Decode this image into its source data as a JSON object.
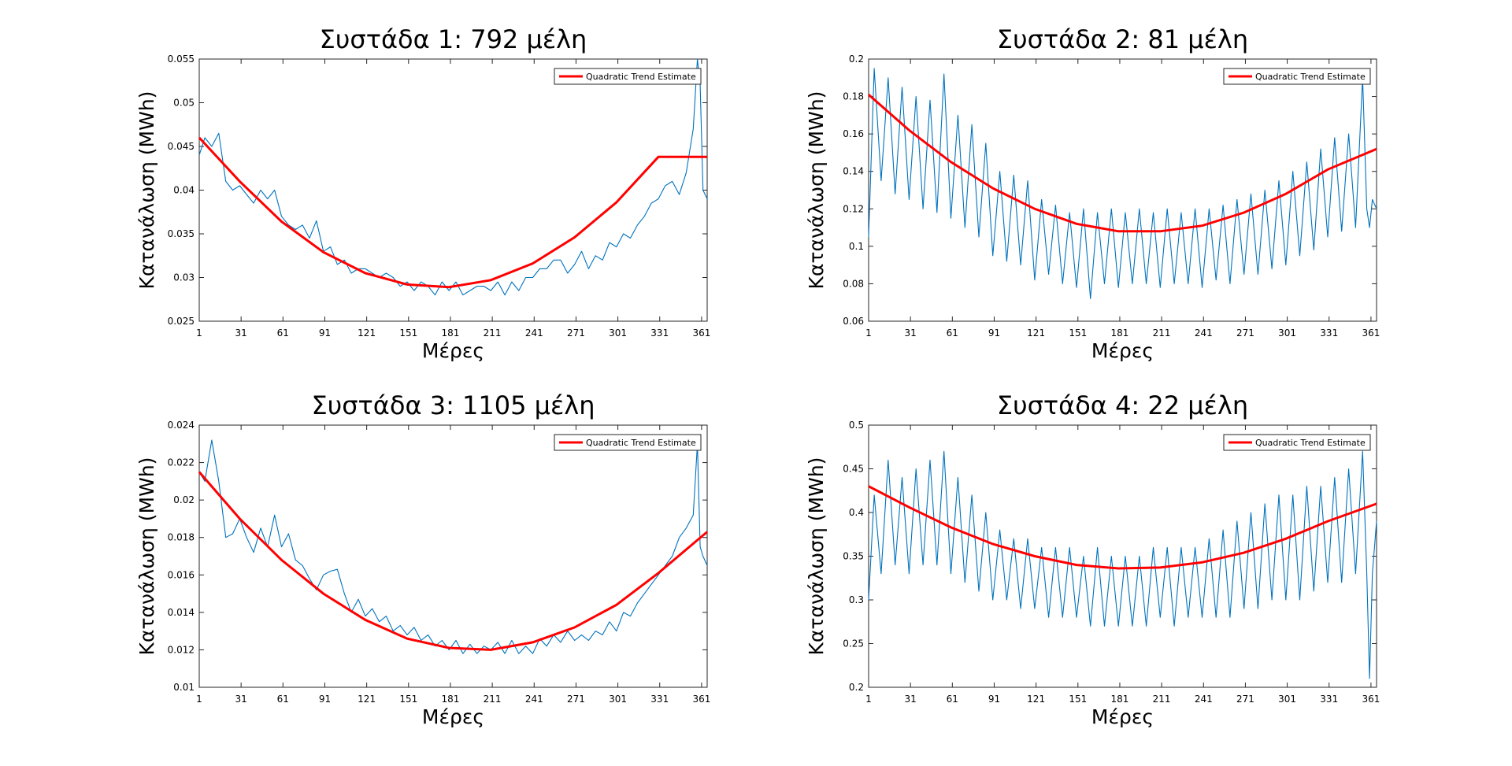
{
  "figure": {
    "background": "#ffffff"
  },
  "colors": {
    "data": "#0072BD",
    "trend": "#FF0000"
  },
  "chart_data": [
    {
      "type": "line",
      "title": "Συστάδα 1: 792 μέλη",
      "xlabel": "Μέρες",
      "ylabel": "Κατανάλωση (MWh)",
      "xlim": [
        1,
        365
      ],
      "ylim": [
        0.025,
        0.055
      ],
      "xticks": [
        1,
        31,
        61,
        91,
        121,
        151,
        181,
        211,
        241,
        271,
        301,
        331,
        361
      ],
      "xtick_labels": [
        "1",
        "31",
        "61",
        "91",
        "121",
        "151",
        "181",
        "211",
        "241",
        "271",
        "301",
        "331",
        "361"
      ],
      "yticks": [
        0.025,
        0.03,
        0.035,
        0.04,
        0.045,
        0.05,
        0.055
      ],
      "ytick_labels": [
        "0.025",
        "0.03",
        "0.035",
        "0.04",
        "0.045",
        "0.05",
        "0.055"
      ],
      "legend": {
        "position": "top-right",
        "entries": [
          "Quadratic Trend Estimate"
        ]
      },
      "series": [
        {
          "kind": "daily",
          "x": [
            1,
            5,
            10,
            15,
            20,
            25,
            30,
            35,
            40,
            45,
            50,
            55,
            60,
            65,
            70,
            75,
            80,
            85,
            90,
            95,
            100,
            105,
            110,
            115,
            120,
            125,
            130,
            135,
            140,
            145,
            150,
            155,
            160,
            165,
            170,
            175,
            180,
            185,
            190,
            195,
            200,
            205,
            210,
            215,
            220,
            225,
            230,
            235,
            240,
            245,
            250,
            255,
            260,
            265,
            270,
            275,
            280,
            285,
            290,
            295,
            300,
            305,
            310,
            315,
            320,
            325,
            330,
            335,
            340,
            345,
            350,
            355,
            358,
            360,
            362,
            365
          ],
          "y": [
            0.044,
            0.046,
            0.045,
            0.0465,
            0.041,
            0.04,
            0.0405,
            0.0395,
            0.0385,
            0.04,
            0.039,
            0.04,
            0.037,
            0.036,
            0.0355,
            0.036,
            0.0345,
            0.0365,
            0.033,
            0.0335,
            0.0315,
            0.032,
            0.0305,
            0.031,
            0.031,
            0.0305,
            0.03,
            0.0305,
            0.03,
            0.029,
            0.0295,
            0.0285,
            0.0295,
            0.029,
            0.028,
            0.0295,
            0.0285,
            0.0295,
            0.028,
            0.0285,
            0.029,
            0.029,
            0.0285,
            0.0295,
            0.028,
            0.0295,
            0.0285,
            0.03,
            0.03,
            0.031,
            0.031,
            0.032,
            0.032,
            0.0305,
            0.0315,
            0.033,
            0.031,
            0.0325,
            0.032,
            0.034,
            0.0335,
            0.035,
            0.0345,
            0.036,
            0.037,
            0.0385,
            0.039,
            0.0405,
            0.041,
            0.0395,
            0.042,
            0.047,
            0.055,
            0.052,
            0.04,
            0.039
          ]
        },
        {
          "kind": "trend",
          "name": "Quadratic Trend Estimate",
          "x": [
            1,
            30,
            60,
            90,
            120,
            150,
            180,
            210,
            240,
            270,
            300,
            330,
            365
          ],
          "y": [
            0.046,
            0.041,
            0.0364,
            0.0329,
            0.0305,
            0.0292,
            0.0289,
            0.0297,
            0.0316,
            0.0346,
            0.0386,
            0.0438,
            0.0438
          ]
        }
      ]
    },
    {
      "type": "line",
      "title": "Συστάδα 2: 81 μέλη",
      "xlabel": "Μέρες",
      "ylabel": "Κατανάλωση (MWh)",
      "xlim": [
        1,
        365
      ],
      "ylim": [
        0.06,
        0.2
      ],
      "xticks": [
        1,
        31,
        61,
        91,
        121,
        151,
        181,
        211,
        241,
        271,
        301,
        331,
        361
      ],
      "xtick_labels": [
        "1",
        "31",
        "61",
        "91",
        "121",
        "151",
        "181",
        "211",
        "241",
        "271",
        "301",
        "331",
        "361"
      ],
      "yticks": [
        0.06,
        0.08,
        0.1,
        0.12,
        0.14,
        0.16,
        0.18,
        0.2
      ],
      "ytick_labels": [
        "0.06",
        "0.08",
        "0.1",
        "0.12",
        "0.14",
        "0.16",
        "0.18",
        "0.2"
      ],
      "legend": {
        "position": "top-right",
        "entries": [
          "Quadratic Trend Estimate"
        ]
      },
      "series": [
        {
          "kind": "daily",
          "x": [
            1,
            5,
            10,
            15,
            20,
            25,
            30,
            35,
            40,
            45,
            50,
            55,
            60,
            65,
            70,
            75,
            80,
            85,
            90,
            95,
            100,
            105,
            110,
            115,
            120,
            125,
            130,
            135,
            140,
            145,
            150,
            155,
            160,
            165,
            170,
            175,
            180,
            185,
            190,
            195,
            200,
            205,
            210,
            215,
            220,
            225,
            230,
            235,
            240,
            245,
            250,
            255,
            260,
            265,
            270,
            275,
            280,
            285,
            290,
            295,
            300,
            305,
            310,
            315,
            320,
            325,
            330,
            335,
            340,
            345,
            350,
            355,
            358,
            360,
            362,
            365
          ],
          "y": [
            0.105,
            0.195,
            0.135,
            0.19,
            0.128,
            0.185,
            0.125,
            0.18,
            0.12,
            0.178,
            0.118,
            0.192,
            0.115,
            0.17,
            0.11,
            0.165,
            0.105,
            0.155,
            0.095,
            0.14,
            0.092,
            0.138,
            0.09,
            0.135,
            0.082,
            0.125,
            0.085,
            0.122,
            0.08,
            0.118,
            0.078,
            0.12,
            0.072,
            0.118,
            0.08,
            0.12,
            0.078,
            0.118,
            0.08,
            0.12,
            0.08,
            0.118,
            0.078,
            0.12,
            0.08,
            0.118,
            0.08,
            0.12,
            0.078,
            0.12,
            0.082,
            0.122,
            0.08,
            0.125,
            0.085,
            0.128,
            0.085,
            0.13,
            0.088,
            0.135,
            0.09,
            0.14,
            0.095,
            0.145,
            0.098,
            0.152,
            0.105,
            0.158,
            0.108,
            0.16,
            0.11,
            0.19,
            0.12,
            0.11,
            0.125,
            0.12
          ]
        },
        {
          "kind": "trend",
          "name": "Quadratic Trend Estimate",
          "x": [
            1,
            30,
            60,
            90,
            120,
            150,
            180,
            210,
            240,
            270,
            300,
            330,
            365
          ],
          "y": [
            0.181,
            0.162,
            0.145,
            0.131,
            0.12,
            0.112,
            0.108,
            0.108,
            0.111,
            0.118,
            0.128,
            0.141,
            0.152
          ]
        }
      ]
    },
    {
      "type": "line",
      "title": "Συστάδα 3: 1105 μέλη",
      "xlabel": "Μέρες",
      "ylabel": "Κατανάλωση (MWh)",
      "xlim": [
        1,
        365
      ],
      "ylim": [
        0.01,
        0.024
      ],
      "xticks": [
        1,
        31,
        61,
        91,
        121,
        151,
        181,
        211,
        241,
        271,
        301,
        331,
        361
      ],
      "xtick_labels": [
        "1",
        "31",
        "61",
        "91",
        "121",
        "151",
        "181",
        "211",
        "241",
        "271",
        "301",
        "331",
        "361"
      ],
      "yticks": [
        0.01,
        0.012,
        0.014,
        0.016,
        0.018,
        0.02,
        0.022,
        0.024
      ],
      "ytick_labels": [
        "0.01",
        "0.012",
        "0.014",
        "0.016",
        "0.018",
        "0.02",
        "0.022",
        "0.024"
      ],
      "legend": {
        "position": "top-right",
        "entries": [
          "Quadratic Trend Estimate"
        ]
      },
      "series": [
        {
          "kind": "daily",
          "x": [
            1,
            5,
            10,
            15,
            20,
            25,
            30,
            35,
            40,
            45,
            50,
            55,
            60,
            65,
            70,
            75,
            80,
            85,
            90,
            95,
            100,
            105,
            110,
            115,
            120,
            125,
            130,
            135,
            140,
            145,
            150,
            155,
            160,
            165,
            170,
            175,
            180,
            185,
            190,
            195,
            200,
            205,
            210,
            215,
            220,
            225,
            230,
            235,
            240,
            245,
            250,
            255,
            260,
            265,
            270,
            275,
            280,
            285,
            290,
            295,
            300,
            305,
            310,
            315,
            320,
            325,
            330,
            335,
            340,
            345,
            350,
            355,
            358,
            360,
            362,
            365
          ],
          "y": [
            0.0215,
            0.021,
            0.0232,
            0.021,
            0.018,
            0.0182,
            0.019,
            0.018,
            0.0172,
            0.0185,
            0.0175,
            0.0192,
            0.0175,
            0.0182,
            0.0168,
            0.0165,
            0.0158,
            0.0152,
            0.016,
            0.0162,
            0.0163,
            0.015,
            0.014,
            0.0147,
            0.0138,
            0.0142,
            0.0135,
            0.0138,
            0.013,
            0.0133,
            0.0128,
            0.0132,
            0.0125,
            0.0128,
            0.0122,
            0.0125,
            0.012,
            0.0125,
            0.0118,
            0.0123,
            0.0118,
            0.0122,
            0.012,
            0.0124,
            0.0118,
            0.0125,
            0.0118,
            0.0122,
            0.0118,
            0.0126,
            0.0122,
            0.0128,
            0.0124,
            0.013,
            0.0125,
            0.0128,
            0.0125,
            0.013,
            0.0128,
            0.0135,
            0.013,
            0.014,
            0.0138,
            0.0145,
            0.015,
            0.0155,
            0.016,
            0.0165,
            0.017,
            0.018,
            0.0185,
            0.0192,
            0.023,
            0.0175,
            0.017,
            0.0165
          ]
        },
        {
          "kind": "trend",
          "name": "Quadratic Trend Estimate",
          "x": [
            1,
            30,
            60,
            90,
            120,
            150,
            180,
            210,
            240,
            270,
            300,
            330,
            365
          ],
          "y": [
            0.0215,
            0.019,
            0.0168,
            0.015,
            0.0136,
            0.0126,
            0.0121,
            0.012,
            0.0124,
            0.0132,
            0.0144,
            0.0161,
            0.0183
          ]
        }
      ]
    },
    {
      "type": "line",
      "title": "Συστάδα 4: 22 μέλη",
      "xlabel": "Μέρες",
      "ylabel": "Κατανάλωση (MWh)",
      "xlim": [
        1,
        365
      ],
      "ylim": [
        0.2,
        0.5
      ],
      "xticks": [
        1,
        31,
        61,
        91,
        121,
        151,
        181,
        211,
        241,
        271,
        301,
        331,
        361
      ],
      "xtick_labels": [
        "1",
        "31",
        "61",
        "91",
        "121",
        "151",
        "181",
        "211",
        "241",
        "271",
        "301",
        "331",
        "361"
      ],
      "yticks": [
        0.2,
        0.25,
        0.3,
        0.35,
        0.4,
        0.45,
        0.5
      ],
      "ytick_labels": [
        "0.2",
        "0.25",
        "0.3",
        "0.35",
        "0.4",
        "0.45",
        "0.5"
      ],
      "legend": {
        "position": "top-right",
        "entries": [
          "Quadratic Trend Estimate"
        ]
      },
      "series": [
        {
          "kind": "daily",
          "x": [
            1,
            5,
            10,
            15,
            20,
            25,
            30,
            35,
            40,
            45,
            50,
            55,
            60,
            65,
            70,
            75,
            80,
            85,
            90,
            95,
            100,
            105,
            110,
            115,
            120,
            125,
            130,
            135,
            140,
            145,
            150,
            155,
            160,
            165,
            170,
            175,
            180,
            185,
            190,
            195,
            200,
            205,
            210,
            215,
            220,
            225,
            230,
            235,
            240,
            245,
            250,
            255,
            260,
            265,
            270,
            275,
            280,
            285,
            290,
            295,
            300,
            305,
            310,
            315,
            320,
            325,
            330,
            335,
            340,
            345,
            350,
            355,
            358,
            360,
            362,
            365
          ],
          "y": [
            0.3,
            0.42,
            0.33,
            0.46,
            0.34,
            0.44,
            0.33,
            0.45,
            0.34,
            0.46,
            0.34,
            0.47,
            0.33,
            0.44,
            0.32,
            0.42,
            0.31,
            0.4,
            0.3,
            0.38,
            0.3,
            0.37,
            0.29,
            0.37,
            0.29,
            0.36,
            0.28,
            0.36,
            0.28,
            0.36,
            0.28,
            0.35,
            0.27,
            0.36,
            0.27,
            0.35,
            0.27,
            0.35,
            0.27,
            0.35,
            0.27,
            0.36,
            0.28,
            0.36,
            0.27,
            0.36,
            0.28,
            0.36,
            0.28,
            0.37,
            0.28,
            0.38,
            0.28,
            0.39,
            0.29,
            0.4,
            0.29,
            0.41,
            0.3,
            0.42,
            0.3,
            0.42,
            0.3,
            0.43,
            0.31,
            0.43,
            0.32,
            0.44,
            0.32,
            0.45,
            0.33,
            0.47,
            0.33,
            0.21,
            0.33,
            0.39
          ]
        },
        {
          "kind": "trend",
          "name": "Quadratic Trend Estimate",
          "x": [
            1,
            30,
            60,
            90,
            120,
            150,
            180,
            210,
            240,
            270,
            300,
            330,
            365
          ],
          "y": [
            0.43,
            0.406,
            0.383,
            0.364,
            0.35,
            0.34,
            0.336,
            0.337,
            0.343,
            0.354,
            0.37,
            0.39,
            0.41
          ]
        }
      ]
    }
  ]
}
